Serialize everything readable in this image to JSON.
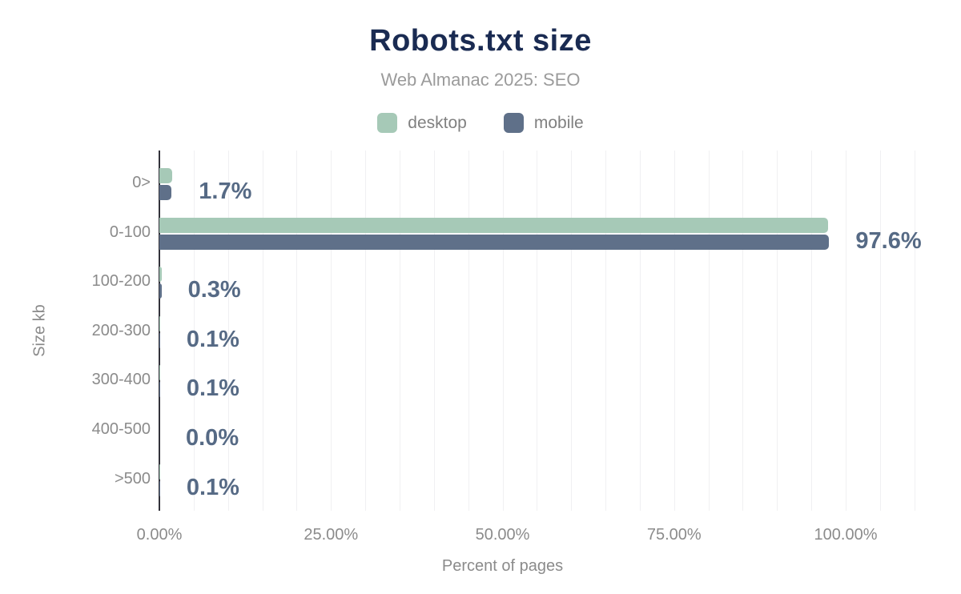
{
  "colors": {
    "title": "#1a2b52",
    "subtitle": "#9b9b9b",
    "axis_text": "#8b8b8b",
    "value_label": "#566a85",
    "axis_line": "#32323a",
    "gridline": "#f0f0f2",
    "desktop": "#a6c9b7",
    "mobile": "#5f7089"
  },
  "chart_data": {
    "type": "bar",
    "orientation": "horizontal",
    "title": "Robots.txt size",
    "subtitle": "Web Almanac 2025: SEO",
    "xlabel": "Percent of pages",
    "ylabel": "Size kb",
    "categories": [
      "0>",
      "0-100",
      "100-200",
      "200-300",
      "300-400",
      "400-500",
      ">500"
    ],
    "series": [
      {
        "name": "desktop",
        "color": "#a6c9b7",
        "values": [
          1.9,
          97.4,
          0.3,
          0.1,
          0.1,
          0.0,
          0.1
        ]
      },
      {
        "name": "mobile",
        "color": "#5f7089",
        "values": [
          1.7,
          97.6,
          0.3,
          0.1,
          0.1,
          0.0,
          0.1
        ]
      }
    ],
    "value_labels": [
      "1.7%",
      "97.6%",
      "0.3%",
      "0.1%",
      "0.1%",
      "0.0%",
      "0.1%"
    ],
    "x_ticks": [
      {
        "value": 0,
        "label": "0.00%"
      },
      {
        "value": 25,
        "label": "25.00%"
      },
      {
        "value": 50,
        "label": "50.00%"
      },
      {
        "value": 75,
        "label": "75.00%"
      },
      {
        "value": 100,
        "label": "100.00%"
      }
    ],
    "xlim": [
      0,
      110
    ],
    "grid_step_pct": 5,
    "grid": true,
    "legend_position": "top"
  }
}
